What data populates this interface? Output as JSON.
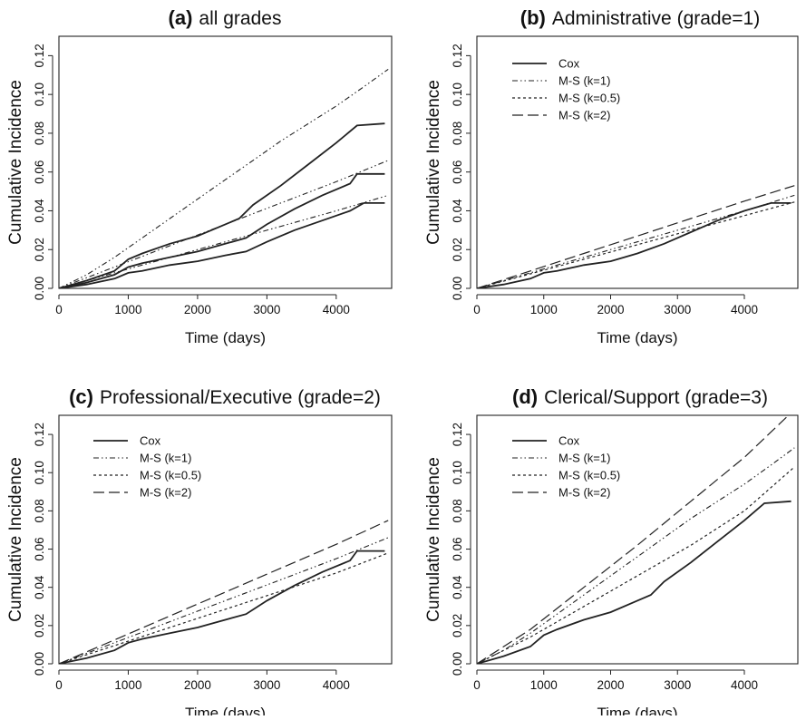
{
  "chart_data": [
    {
      "type": "line",
      "title_tag": "(a)",
      "title": "all grades",
      "xlabel": "Time (days)",
      "ylabel": "Cumulative Incidence",
      "xlim": [
        0,
        4800
      ],
      "ylim": [
        0,
        0.13
      ],
      "xticks": [
        0,
        1000,
        2000,
        3000,
        4000
      ],
      "yticks": [
        0.0,
        0.02,
        0.04,
        0.06,
        0.08,
        0.1,
        0.12
      ],
      "legend": null,
      "series": [
        {
          "style": "solid",
          "x": [
            0,
            400,
            800,
            1000,
            1200,
            1600,
            2000,
            2400,
            2600,
            2800,
            3200,
            3600,
            4000,
            4300,
            4700
          ],
          "y": [
            0,
            0.004,
            0.009,
            0.015,
            0.018,
            0.023,
            0.027,
            0.033,
            0.036,
            0.043,
            0.053,
            0.064,
            0.075,
            0.084,
            0.085
          ]
        },
        {
          "style": "dashdot",
          "x": [
            0,
            400,
            800,
            1200,
            1600,
            2000,
            2400,
            2800,
            3200,
            3600,
            4000,
            4400,
            4750
          ],
          "y": [
            0,
            0.007,
            0.016,
            0.026,
            0.036,
            0.046,
            0.056,
            0.066,
            0.076,
            0.085,
            0.094,
            0.104,
            0.113
          ]
        },
        {
          "style": "solid",
          "x": [
            0,
            400,
            800,
            1000,
            1200,
            1600,
            2000,
            2400,
            2700,
            3000,
            3400,
            3800,
            4200,
            4300,
            4700
          ],
          "y": [
            0,
            0.003,
            0.007,
            0.011,
            0.013,
            0.016,
            0.019,
            0.023,
            0.026,
            0.033,
            0.041,
            0.048,
            0.054,
            0.059,
            0.059
          ]
        },
        {
          "style": "dashdot",
          "x": [
            0,
            800,
            1600,
            2400,
            3200,
            4000,
            4750
          ],
          "y": [
            0,
            0.011,
            0.022,
            0.033,
            0.044,
            0.055,
            0.066
          ]
        },
        {
          "style": "solid",
          "x": [
            0,
            400,
            800,
            1000,
            1200,
            1600,
            2000,
            2400,
            2700,
            3000,
            3400,
            3800,
            4200,
            4400,
            4700
          ],
          "y": [
            0,
            0.002,
            0.005,
            0.008,
            0.009,
            0.012,
            0.014,
            0.017,
            0.019,
            0.024,
            0.03,
            0.035,
            0.04,
            0.044,
            0.044
          ]
        },
        {
          "style": "dashdot",
          "x": [
            0,
            800,
            1600,
            2400,
            3200,
            4000,
            4750
          ],
          "y": [
            0,
            0.008,
            0.016,
            0.024,
            0.032,
            0.04,
            0.048
          ]
        }
      ]
    },
    {
      "type": "line",
      "title_tag": "(b)",
      "title": "Administrative (grade=1)",
      "xlabel": "Time (days)",
      "ylabel": "Cumulative Incidence",
      "xlim": [
        0,
        4800
      ],
      "ylim": [
        0,
        0.13
      ],
      "xticks": [
        0,
        1000,
        2000,
        3000,
        4000
      ],
      "yticks": [
        0.0,
        0.02,
        0.04,
        0.06,
        0.08,
        0.1,
        0.12
      ],
      "legend": [
        "Cox",
        "M-S (k=1)",
        "M-S (k=0.5)",
        "M-S (k=2)"
      ],
      "legend_styles": [
        "solid",
        "dashdot",
        "dashed",
        "longdash"
      ],
      "series": [
        {
          "style": "solid",
          "x": [
            0,
            400,
            800,
            1000,
            1200,
            1600,
            2000,
            2400,
            2800,
            3200,
            3600,
            4000,
            4400,
            4700
          ],
          "y": [
            0,
            0.002,
            0.005,
            0.008,
            0.009,
            0.012,
            0.014,
            0.018,
            0.023,
            0.029,
            0.035,
            0.04,
            0.044,
            0.044
          ]
        },
        {
          "style": "dashdot",
          "x": [
            0,
            800,
            1600,
            2400,
            3200,
            4000,
            4750
          ],
          "y": [
            0,
            0.008,
            0.016,
            0.024,
            0.032,
            0.04,
            0.048
          ]
        },
        {
          "style": "dashed",
          "x": [
            0,
            800,
            1600,
            2400,
            3200,
            4000,
            4750
          ],
          "y": [
            0,
            0.0075,
            0.015,
            0.0225,
            0.03,
            0.0375,
            0.0445
          ]
        },
        {
          "style": "longdash",
          "x": [
            0,
            800,
            1600,
            2400,
            3200,
            4000,
            4750
          ],
          "y": [
            0,
            0.009,
            0.018,
            0.027,
            0.036,
            0.045,
            0.053
          ]
        }
      ]
    },
    {
      "type": "line",
      "title_tag": "(c)",
      "title": "Professional/Executive (grade=2)",
      "xlabel": "Time (days)",
      "ylabel": "Cumulative Incidence",
      "xlim": [
        0,
        4800
      ],
      "ylim": [
        0,
        0.13
      ],
      "xticks": [
        0,
        1000,
        2000,
        3000,
        4000
      ],
      "yticks": [
        0.0,
        0.02,
        0.04,
        0.06,
        0.08,
        0.1,
        0.12
      ],
      "legend": [
        "Cox",
        "M-S (k=1)",
        "M-S (k=0.5)",
        "M-S (k=2)"
      ],
      "legend_styles": [
        "solid",
        "dashdot",
        "dashed",
        "longdash"
      ],
      "series": [
        {
          "style": "solid",
          "x": [
            0,
            400,
            800,
            1000,
            1200,
            1600,
            2000,
            2400,
            2700,
            3000,
            3400,
            3800,
            4200,
            4300,
            4700
          ],
          "y": [
            0,
            0.003,
            0.007,
            0.011,
            0.013,
            0.016,
            0.019,
            0.023,
            0.026,
            0.033,
            0.041,
            0.048,
            0.054,
            0.059,
            0.059
          ]
        },
        {
          "style": "dashdot",
          "x": [
            0,
            800,
            1600,
            2400,
            3200,
            4000,
            4750
          ],
          "y": [
            0,
            0.011,
            0.022,
            0.033,
            0.044,
            0.055,
            0.066
          ]
        },
        {
          "style": "dashed",
          "x": [
            0,
            800,
            1600,
            2400,
            3200,
            4000,
            4750
          ],
          "y": [
            0,
            0.0095,
            0.019,
            0.0285,
            0.038,
            0.0475,
            0.058
          ]
        },
        {
          "style": "longdash",
          "x": [
            0,
            800,
            1600,
            2400,
            3200,
            4000,
            4750
          ],
          "y": [
            0,
            0.0125,
            0.025,
            0.0375,
            0.05,
            0.0625,
            0.075
          ]
        }
      ]
    },
    {
      "type": "line",
      "title_tag": "(d)",
      "title": "Clerical/Support (grade=3)",
      "xlabel": "Time (days)",
      "ylabel": "Cumulative Incidence",
      "xlim": [
        0,
        4800
      ],
      "ylim": [
        0,
        0.13
      ],
      "xticks": [
        0,
        1000,
        2000,
        3000,
        4000
      ],
      "yticks": [
        0.0,
        0.02,
        0.04,
        0.06,
        0.08,
        0.1,
        0.12
      ],
      "legend": [
        "Cox",
        "M-S (k=1)",
        "M-S (k=0.5)",
        "M-S (k=2)"
      ],
      "legend_styles": [
        "solid",
        "dashdot",
        "dashed",
        "longdash"
      ],
      "series": [
        {
          "style": "solid",
          "x": [
            0,
            400,
            800,
            1000,
            1200,
            1600,
            2000,
            2400,
            2600,
            2800,
            3200,
            3600,
            4000,
            4300,
            4700
          ],
          "y": [
            0,
            0.004,
            0.009,
            0.015,
            0.018,
            0.023,
            0.027,
            0.033,
            0.036,
            0.043,
            0.053,
            0.064,
            0.075,
            0.084,
            0.085
          ]
        },
        {
          "style": "dashdot",
          "x": [
            0,
            400,
            800,
            1200,
            1600,
            2000,
            2400,
            2800,
            3200,
            3600,
            4000,
            4400,
            4750
          ],
          "y": [
            0,
            0.007,
            0.016,
            0.026,
            0.036,
            0.046,
            0.056,
            0.066,
            0.076,
            0.085,
            0.094,
            0.104,
            0.113
          ]
        },
        {
          "style": "dashed",
          "x": [
            0,
            800,
            1600,
            2400,
            3200,
            4000,
            4750
          ],
          "y": [
            0,
            0.014,
            0.03,
            0.046,
            0.062,
            0.08,
            0.103
          ]
        },
        {
          "style": "longdash",
          "x": [
            0,
            800,
            1600,
            2400,
            3200,
            4000,
            4750
          ],
          "y": [
            0,
            0.018,
            0.04,
            0.062,
            0.085,
            0.108,
            0.133
          ]
        }
      ]
    }
  ]
}
